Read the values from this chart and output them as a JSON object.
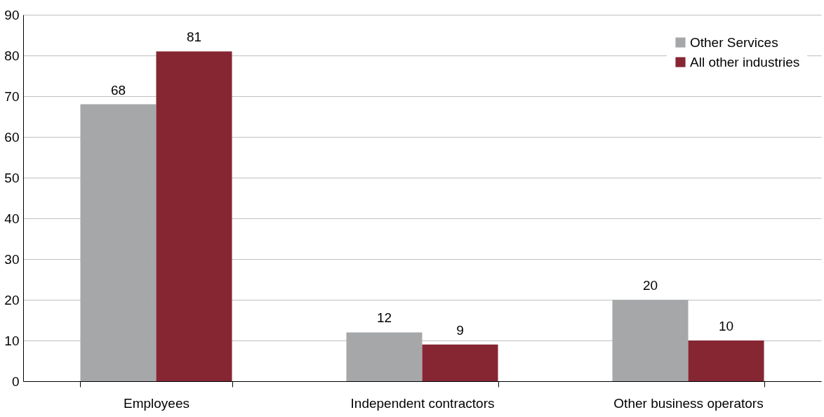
{
  "chart_data": {
    "type": "bar",
    "categories": [
      "Employees",
      "Independent contractors",
      "Other business operators"
    ],
    "series": [
      {
        "name": "Other Services",
        "color": "#a6a7a9",
        "values": [
          68,
          12,
          20
        ]
      },
      {
        "name": "All other industries",
        "color": "#862633",
        "values": [
          81,
          9,
          10
        ]
      }
    ],
    "ylim": [
      0,
      90
    ],
    "yticks": [
      0,
      10,
      20,
      30,
      40,
      50,
      60,
      70,
      80,
      90
    ],
    "grid": "y",
    "legend": "top right",
    "data_labels": true
  }
}
